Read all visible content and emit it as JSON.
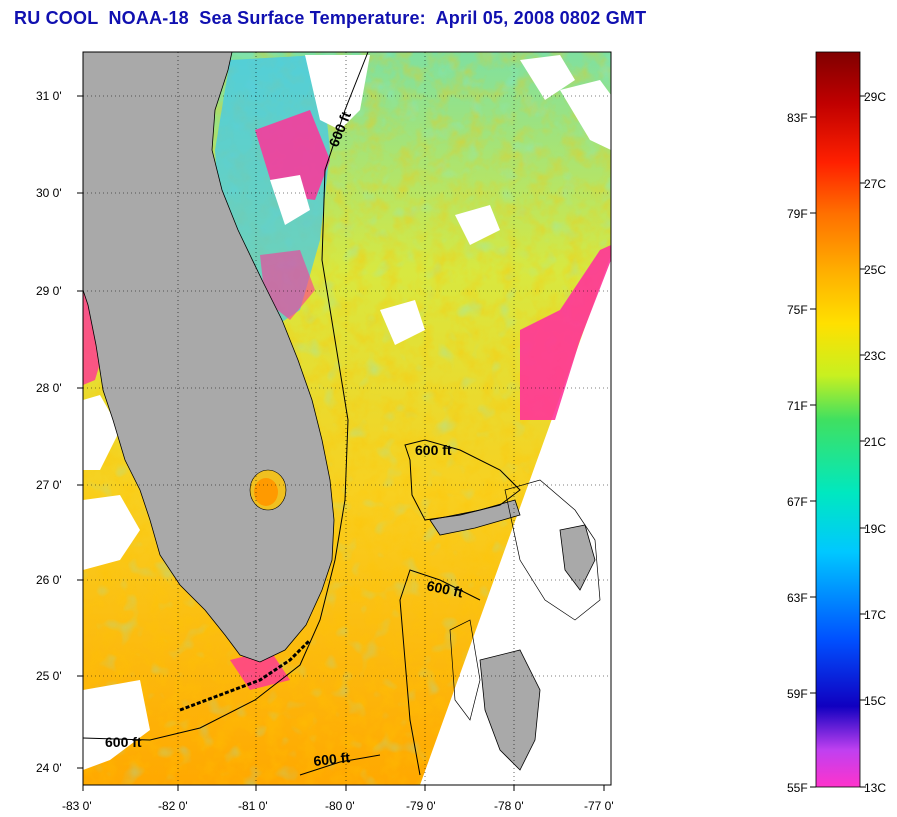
{
  "title": "RU COOL  NOAA-18  Sea Surface Temperature:  April 05, 2008 0802 GMT",
  "map": {
    "lon_ticks": [
      "-83 0'",
      "-82 0'",
      "-81 0'",
      "-80 0'",
      "-79 0'",
      "-78 0'",
      "-77 0'"
    ],
    "lat_ticks": [
      "31 0'",
      "30 0'",
      "29 0'",
      "28 0'",
      "27 0'",
      "26 0'",
      "25 0'",
      "24 0'"
    ],
    "contour_labels": [
      "600 ft",
      "600 ft",
      "600 ft",
      "600 ft",
      "600 ft"
    ],
    "colors": {
      "land": "#a9a9a9",
      "cloud": "#ffffff",
      "coast": "#000000"
    }
  },
  "colorbar": {
    "fahrenheit_labels": [
      "83F",
      "79F",
      "75F",
      "71F",
      "67F",
      "63F",
      "59F",
      "55F"
    ],
    "celsius_labels": [
      "29C",
      "27C",
      "25C",
      "23C",
      "21C",
      "19C",
      "17C",
      "15C",
      "13C"
    ],
    "range_c": [
      13,
      30
    ],
    "colors": [
      "#ff33cc",
      "#c040f0",
      "#1000c0",
      "#0050ff",
      "#00c8ff",
      "#00e8c0",
      "#40e060",
      "#c8f020",
      "#ffe000",
      "#ffb000",
      "#ff7000",
      "#ff2000",
      "#c00000",
      "#800000"
    ]
  }
}
